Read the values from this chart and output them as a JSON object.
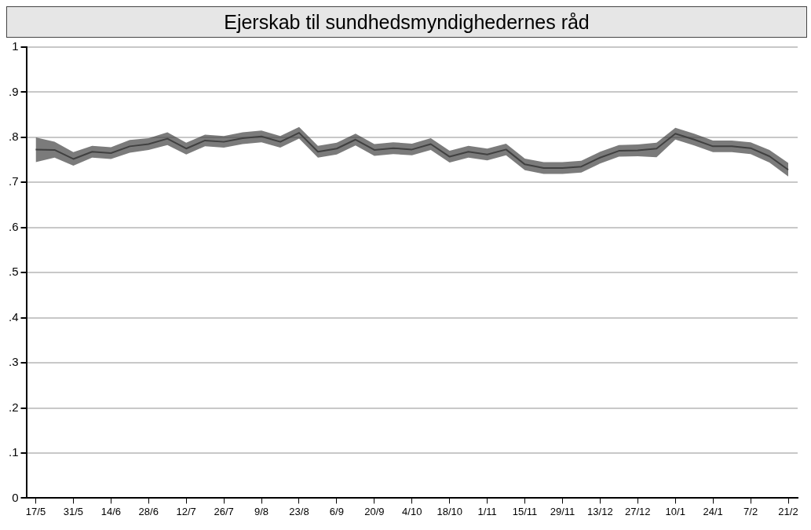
{
  "chart_data": {
    "type": "line",
    "title": "Ejerskab til sundhedsmyndighedernes råd",
    "categories": [
      "17/5",
      null,
      "31/5",
      null,
      "14/6",
      null,
      "28/6",
      null,
      "12/7",
      null,
      "26/7",
      null,
      "9/8",
      null,
      "23/8",
      null,
      "6/9",
      null,
      "20/9",
      null,
      "4/10",
      null,
      "18/10",
      null,
      "1/11",
      null,
      "15/11",
      null,
      "29/11",
      null,
      "13/12",
      null,
      "27/12",
      null,
      "10/1",
      null,
      "24/1",
      null,
      "7/2",
      null,
      "21/2"
    ],
    "series": [
      {
        "color": "#404040",
        "values": [
          0.773,
          0.772,
          0.752,
          0.768,
          0.765,
          0.78,
          0.785,
          0.797,
          0.775,
          0.793,
          0.79,
          0.798,
          0.802,
          0.79,
          0.81,
          0.768,
          0.775,
          0.795,
          0.772,
          0.776,
          0.773,
          0.785,
          0.757,
          0.768,
          0.762,
          0.773,
          0.74,
          0.732,
          0.732,
          0.735,
          0.755,
          0.77,
          0.771,
          0.775,
          0.808,
          0.795,
          0.78,
          0.78,
          0.776,
          0.758,
          0.728
        ],
        "lower": [
          0.745,
          0.755,
          0.737,
          0.755,
          0.752,
          0.766,
          0.772,
          0.783,
          0.762,
          0.78,
          0.777,
          0.785,
          0.789,
          0.777,
          0.797,
          0.755,
          0.762,
          0.782,
          0.759,
          0.763,
          0.76,
          0.772,
          0.744,
          0.755,
          0.749,
          0.76,
          0.727,
          0.719,
          0.719,
          0.722,
          0.742,
          0.757,
          0.758,
          0.756,
          0.795,
          0.782,
          0.767,
          0.767,
          0.763,
          0.744,
          0.713
        ],
        "upper": [
          0.8,
          0.79,
          0.767,
          0.781,
          0.778,
          0.794,
          0.798,
          0.811,
          0.788,
          0.806,
          0.803,
          0.811,
          0.815,
          0.803,
          0.823,
          0.781,
          0.788,
          0.808,
          0.785,
          0.789,
          0.786,
          0.798,
          0.77,
          0.781,
          0.775,
          0.786,
          0.753,
          0.745,
          0.745,
          0.748,
          0.768,
          0.783,
          0.784,
          0.788,
          0.821,
          0.808,
          0.793,
          0.793,
          0.789,
          0.772,
          0.743
        ]
      }
    ],
    "ylim": [
      0,
      1
    ],
    "yticks": [
      0,
      {
        "value": 0.1,
        "label": ".1"
      },
      {
        "value": 0.2,
        "label": ".2"
      },
      {
        "value": 0.3,
        "label": ".3"
      },
      {
        "value": 0.4,
        "label": ".4"
      },
      {
        "value": 0.5,
        "label": ".5"
      },
      {
        "value": 0.6,
        "label": ".6"
      },
      {
        "value": 0.7,
        "label": ".7"
      },
      {
        "value": 0.8,
        "label": ".8"
      },
      {
        "value": 0.9,
        "label": ".9"
      },
      1
    ],
    "grid": "y",
    "legend": false,
    "marker": "none",
    "line_style": "solid"
  }
}
